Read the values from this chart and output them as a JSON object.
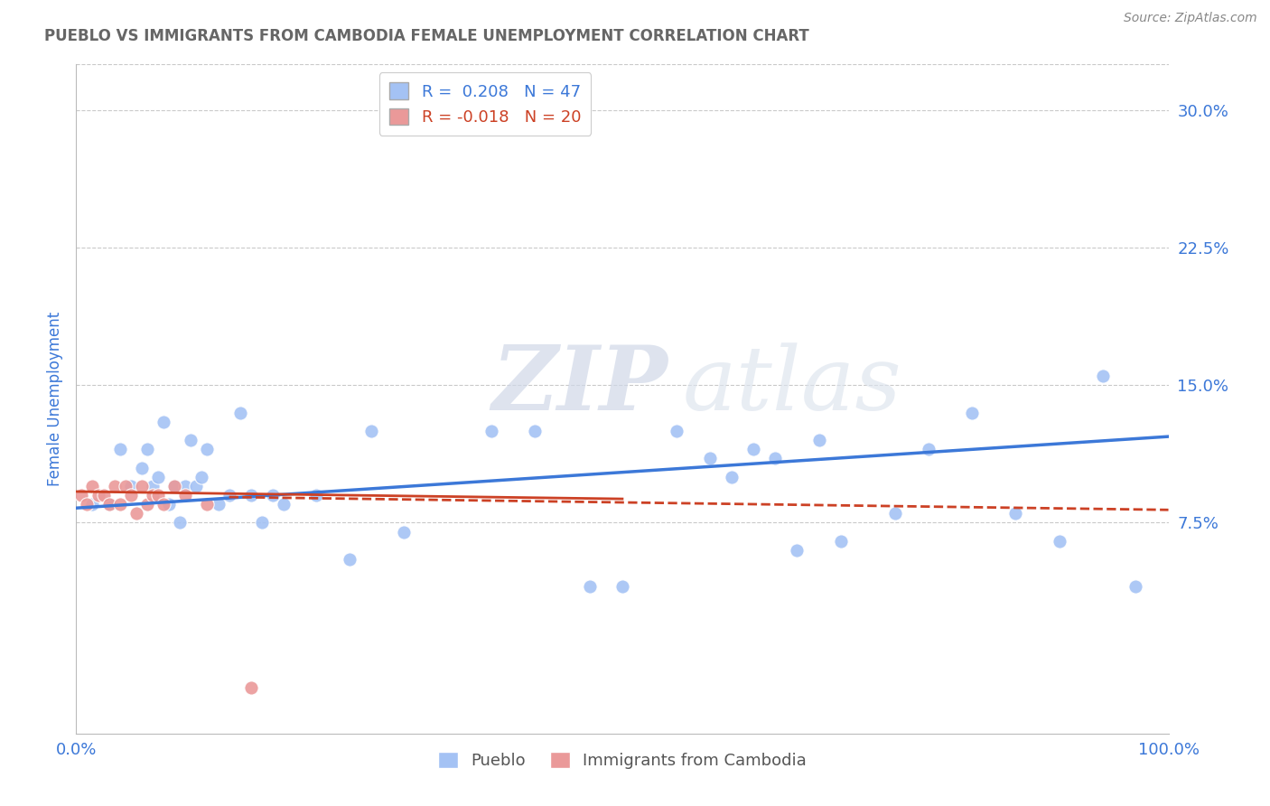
{
  "title": "PUEBLO VS IMMIGRANTS FROM CAMBODIA FEMALE UNEMPLOYMENT CORRELATION CHART",
  "source": "Source: ZipAtlas.com",
  "ylabel": "Female Unemployment",
  "x_min": 0.0,
  "x_max": 1.0,
  "y_min": -0.04,
  "y_max": 0.325,
  "y_ticks": [
    0.075,
    0.15,
    0.225,
    0.3
  ],
  "y_tick_labels": [
    "7.5%",
    "15.0%",
    "22.5%",
    "30.0%"
  ],
  "x_ticks": [
    0.0,
    1.0
  ],
  "x_tick_labels": [
    "0.0%",
    "100.0%"
  ],
  "pueblo_R": 0.208,
  "pueblo_N": 47,
  "cambodia_R": -0.018,
  "cambodia_N": 20,
  "pueblo_color": "#a4c2f4",
  "cambodia_color": "#ea9999",
  "trend_pueblo_color": "#3c78d8",
  "trend_cambodia_color": "#cc4125",
  "background_color": "#ffffff",
  "watermark_zip": "ZIP",
  "watermark_atlas": "atlas",
  "grid_color": "#c9c9c9",
  "title_color": "#666666",
  "axis_label_color": "#3c78d8",
  "tick_label_color": "#3c78d8",
  "pueblo_x": [
    0.015,
    0.03,
    0.04,
    0.05,
    0.06,
    0.065,
    0.07,
    0.075,
    0.08,
    0.085,
    0.09,
    0.095,
    0.1,
    0.105,
    0.11,
    0.115,
    0.12,
    0.13,
    0.14,
    0.15,
    0.16,
    0.17,
    0.18,
    0.19,
    0.22,
    0.25,
    0.27,
    0.3,
    0.38,
    0.42,
    0.47,
    0.5,
    0.55,
    0.58,
    0.6,
    0.62,
    0.64,
    0.66,
    0.68,
    0.7,
    0.75,
    0.78,
    0.82,
    0.86,
    0.9,
    0.94,
    0.97
  ],
  "pueblo_y": [
    0.085,
    0.085,
    0.115,
    0.095,
    0.105,
    0.115,
    0.095,
    0.1,
    0.13,
    0.085,
    0.095,
    0.075,
    0.095,
    0.12,
    0.095,
    0.1,
    0.115,
    0.085,
    0.09,
    0.135,
    0.09,
    0.075,
    0.09,
    0.085,
    0.09,
    0.055,
    0.125,
    0.07,
    0.125,
    0.125,
    0.04,
    0.04,
    0.125,
    0.11,
    0.1,
    0.115,
    0.11,
    0.06,
    0.12,
    0.065,
    0.08,
    0.115,
    0.135,
    0.08,
    0.065,
    0.155,
    0.04
  ],
  "cambodia_x": [
    0.005,
    0.01,
    0.015,
    0.02,
    0.025,
    0.03,
    0.035,
    0.04,
    0.045,
    0.05,
    0.055,
    0.06,
    0.065,
    0.07,
    0.075,
    0.08,
    0.09,
    0.1,
    0.12,
    0.16
  ],
  "cambodia_y": [
    0.09,
    0.085,
    0.095,
    0.09,
    0.09,
    0.085,
    0.095,
    0.085,
    0.095,
    0.09,
    0.08,
    0.095,
    0.085,
    0.09,
    0.09,
    0.085,
    0.095,
    0.09,
    0.085,
    -0.015
  ],
  "trend_pueblo_x0": 0.0,
  "trend_pueblo_y0": 0.083,
  "trend_pueblo_x1": 1.0,
  "trend_pueblo_y1": 0.122,
  "trend_cambodia_x0": 0.0,
  "trend_cambodia_y0": 0.092,
  "trend_cambodia_x1": 0.5,
  "trend_cambodia_y1": 0.088,
  "trend_cambodia_dash_x0": 0.14,
  "trend_cambodia_dash_x1": 1.0,
  "trend_cambodia_dash_y0": 0.089,
  "trend_cambodia_dash_y1": 0.082
}
